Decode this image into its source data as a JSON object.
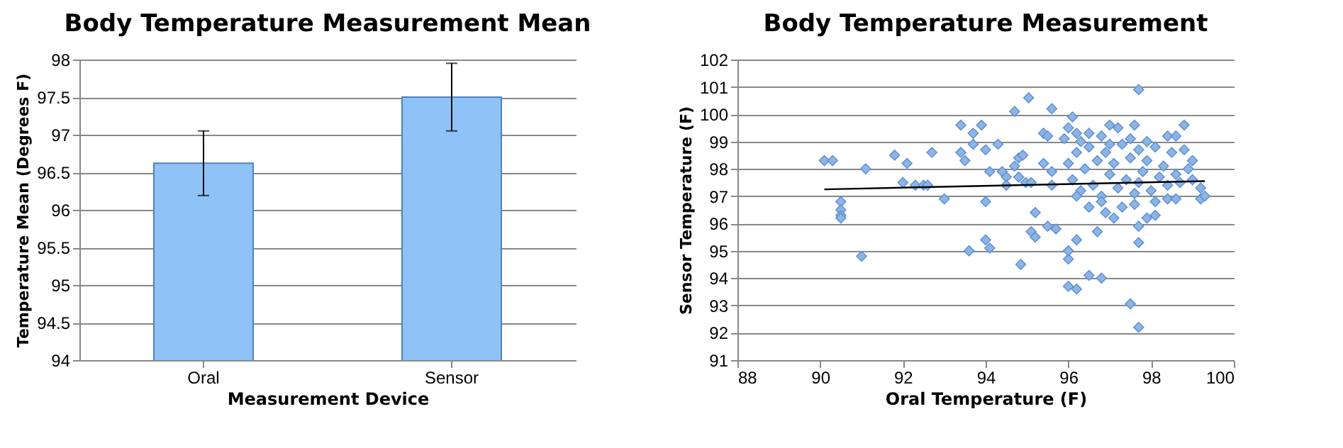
{
  "chart_data": [
    {
      "type": "bar",
      "title": "Body Temperature Measurement Mean",
      "xlabel": "Measurement Device",
      "ylabel": "Temperature Mean (Degrees F)",
      "categories": [
        "Oral",
        "Sensor"
      ],
      "values": [
        96.62,
        97.5
      ],
      "errors": [
        0.43,
        0.45
      ],
      "color": "#8fc3f7",
      "ylim": [
        94,
        98
      ],
      "yticks": [
        94,
        94.5,
        95,
        95.5,
        96,
        96.5,
        97,
        97.5,
        98
      ],
      "grid": "y"
    },
    {
      "type": "scatter",
      "title": "Body Temperature Measurement",
      "xlabel": "Oral Temperature (F)",
      "ylabel": "Sensor Temperature (F)",
      "xlim": [
        88,
        100
      ],
      "xticks": [
        88,
        90,
        92,
        94,
        96,
        98,
        100
      ],
      "ylim": [
        91,
        102
      ],
      "yticks": [
        91,
        92,
        93,
        94,
        95,
        96,
        97,
        98,
        99,
        100,
        101,
        102
      ],
      "grid": "y",
      "series": [
        {
          "type": "scatter",
          "color": "#8db4e2",
          "marker": "diamond",
          "x": [
            90.1,
            90.3,
            90.5,
            90.5,
            90.5,
            90.5,
            91.0,
            91.1,
            91.8,
            92.0,
            92.1,
            92.3,
            92.5,
            92.6,
            92.7,
            93.0,
            93.4,
            93.4,
            93.5,
            93.6,
            93.7,
            93.7,
            93.9,
            94.0,
            94.0,
            94.0,
            94.1,
            94.1,
            94.3,
            94.4,
            94.5,
            94.5,
            94.7,
            94.7,
            94.8,
            94.8,
            94.85,
            94.9,
            94.97,
            95.04,
            95.1,
            95.1,
            95.2,
            95.2,
            95.4,
            95.4,
            95.5,
            95.5,
            95.6,
            95.6,
            95.6,
            95.7,
            95.9,
            96.0,
            96.0,
            96.0,
            96.0,
            96.1,
            96.2,
            96.2,
            96.2,
            96.5,
            96.5,
            96.7,
            96.8,
            96.8,
            96.9,
            97.0,
            97.1,
            97.2,
            97.5,
            97.6,
            97.6,
            97.7,
            97.7,
            97.7,
            97.7,
            97.9,
            98.1,
            98.4,
            98.4,
            98.6,
            98.6,
            98.8,
            98.8,
            99.0,
            99.2,
            99.2,
            99.3,
            96.0,
            96.1,
            96.2,
            96.3,
            96.4,
            96.5,
            96.6,
            96.7,
            96.8,
            96.9,
            97.0,
            97.1,
            97.2,
            97.3,
            97.4,
            97.5,
            97.6,
            97.7,
            97.8,
            97.9,
            98.0,
            98.1,
            98.2,
            98.3,
            98.4,
            98.5,
            98.6,
            98.7,
            98.9,
            99.0,
            96.2,
            96.5,
            96.8,
            97.3,
            97.5,
            97.9,
            98.1,
            96.3,
            97.0,
            97.7
          ],
          "values": [
            98.3,
            98.3,
            96.8,
            96.5,
            96.3,
            96.2,
            94.8,
            98.0,
            98.5,
            97.5,
            98.2,
            97.4,
            97.4,
            97.4,
            98.6,
            96.9,
            99.6,
            98.6,
            98.3,
            95.0,
            99.3,
            98.9,
            99.6,
            98.7,
            96.8,
            95.4,
            95.1,
            97.9,
            98.9,
            97.9,
            97.7,
            97.4,
            100.1,
            98.1,
            98.4,
            97.7,
            94.5,
            98.5,
            97.5,
            100.6,
            97.5,
            95.7,
            96.4,
            95.5,
            99.3,
            98.2,
            99.2,
            95.9,
            100.2,
            97.9,
            97.4,
            95.8,
            99.1,
            94.7,
            93.7,
            99.5,
            95.0,
            99.9,
            99.3,
            93.6,
            95.4,
            99.3,
            94.1,
            95.7,
            99.2,
            94.0,
            96.4,
            99.6,
            96.2,
            99.5,
            93.06,
            99.6,
            96.7,
            100.9,
            92.2,
            95.9,
            95.3,
            96.2,
            96.3,
            99.2,
            96.9,
            99.2,
            96.9,
            99.6,
            98.7,
            98.3,
            96.9,
            97.3,
            97.0,
            98.2,
            97.6,
            98.6,
            97.2,
            98.0,
            98.8,
            97.4,
            98.3,
            97.0,
            98.6,
            97.8,
            98.2,
            97.3,
            98.9,
            97.6,
            98.4,
            97.1,
            98.7,
            97.9,
            98.3,
            97.2,
            98.8,
            97.7,
            98.1,
            97.4,
            98.6,
            97.8,
            97.5,
            98.0,
            97.6,
            97.0,
            96.6,
            96.8,
            96.6,
            99.1,
            99.0,
            96.8,
            99.0,
            98.9,
            97.5
          ]
        },
        {
          "type": "line",
          "color": "#000000",
          "x": [
            90.1,
            99.3
          ],
          "values": [
            97.25,
            97.55
          ]
        }
      ]
    }
  ]
}
